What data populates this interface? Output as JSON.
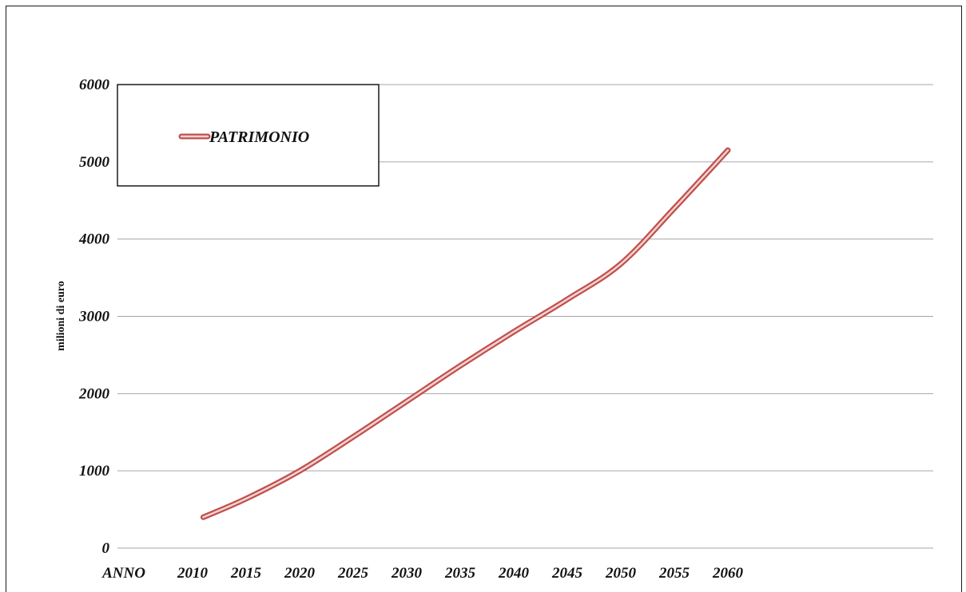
{
  "chart_data": {
    "type": "line",
    "title": "",
    "xlabel": "ANNO",
    "ylabel": "milioni di euro",
    "x_ticks": [
      "2010",
      "2015",
      "2020",
      "2025",
      "2030",
      "2035",
      "2040",
      "2045",
      "2050",
      "2055",
      "2060"
    ],
    "y_ticks": [
      "0",
      "1000",
      "2000",
      "3000",
      "4000",
      "5000",
      "6000"
    ],
    "ylim": [
      0,
      6000
    ],
    "xlim": [
      2005,
      2065
    ],
    "grid": true,
    "legend_position": "top-left",
    "series": [
      {
        "name": "PATRIMONIO",
        "color": "#c0504d",
        "x": [
          2011,
          2015,
          2020,
          2025,
          2030,
          2035,
          2040,
          2045,
          2050,
          2055,
          2060
        ],
        "y": [
          400,
          640,
          1000,
          1440,
          1900,
          2360,
          2800,
          3220,
          3680,
          4400,
          5150
        ]
      }
    ]
  }
}
